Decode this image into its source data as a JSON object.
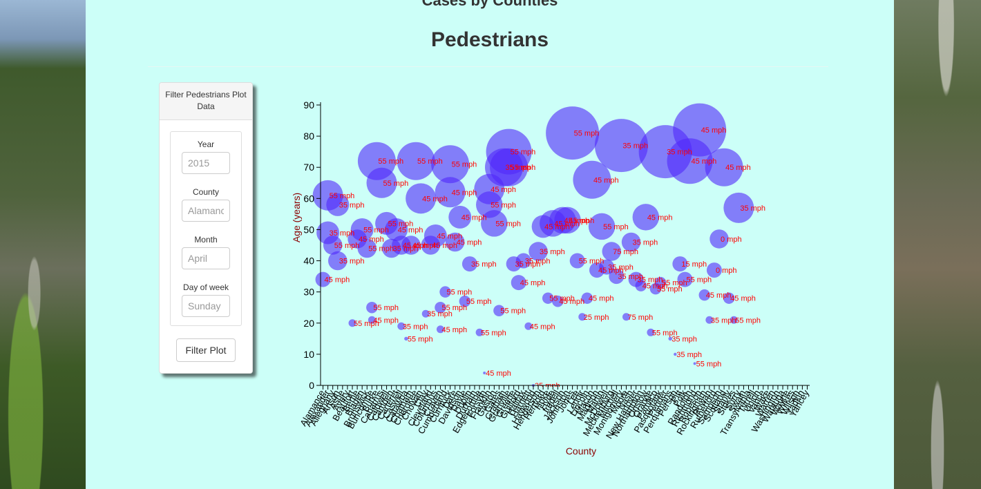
{
  "page": {
    "top_title": "Cases by Counties",
    "main_title": "Pedestrians"
  },
  "filter": {
    "header": "Filter Pedestrians Plot Data",
    "fields": [
      {
        "label": "Year",
        "placeholder": "2015"
      },
      {
        "label": "County",
        "placeholder": "Alamance"
      },
      {
        "label": "Month",
        "placeholder": "April"
      },
      {
        "label": "Day of week",
        "placeholder": "Sunday"
      }
    ],
    "button_label": "Filter Plot"
  },
  "colors": {
    "panel_bg": "#ccfff8",
    "bubble": "#5028fa",
    "bubble_label": "#ff0000",
    "axis_label": "#8b0000"
  },
  "chart_data": {
    "type": "scatter",
    "encoding": "bubble",
    "xlabel": "County",
    "ylabel": "Age (years)",
    "ylim": [
      0,
      90
    ],
    "yticks": [
      0,
      10,
      20,
      30,
      40,
      50,
      60,
      70,
      80,
      90
    ],
    "grid": false,
    "categories": [
      "Alamance",
      "Alexander",
      "Alleghany",
      "Anson",
      "Ashe",
      "Avery",
      "Beaufort",
      "Bertie",
      "Bladen",
      "Brunswick",
      "Buncombe",
      "Burke",
      "Cabarrus",
      "Caldwell",
      "Camden",
      "Carteret",
      "Caswell",
      "Catawba",
      "Chatham",
      "Cherokee",
      "Chowan",
      "Clay",
      "Cleveland",
      "Columbus",
      "Craven",
      "Cumberland",
      "Currituck",
      "Dare",
      "Davidson",
      "Davie",
      "Duplin",
      "Durham",
      "Edgecombe",
      "Forsyth",
      "Franklin",
      "Gaston",
      "Gates",
      "Graham",
      "Granville",
      "Greene",
      "Guilford",
      "Halifax",
      "Harnett",
      "Haywood",
      "Henderson",
      "Hertford",
      "Hoke",
      "Hyde",
      "Iredell",
      "Jackson",
      "Johnston",
      "Jones",
      "Lee",
      "Lenoir",
      "Lincoln",
      "Macon",
      "Madison",
      "Martin",
      "McDowell",
      "Mecklenburg",
      "Mitchell",
      "Montgomery",
      "Moore",
      "Nash",
      "New Hanover",
      "Northampton",
      "Onslow",
      "Orange",
      "Pamlico",
      "Pasquotank",
      "Pender",
      "Perquimans",
      "Person",
      "Pitt",
      "Polk",
      "Randolph",
      "Richmond",
      "Robeson",
      "Rockingham",
      "Rowan",
      "Rutherford",
      "Sampson",
      "Scotland",
      "Stanly",
      "Stokes",
      "Surry",
      "Swain",
      "Transylvania",
      "Tyrrell",
      "Union",
      "Vance",
      "Wake",
      "Warren",
      "Washington",
      "Watauga",
      "Wayne",
      "Wilkes",
      "Wilson",
      "Yadkin",
      "Yancey"
    ],
    "points": [
      {
        "x": "Alamance",
        "y": 34,
        "size": 4,
        "label": "45 mph"
      },
      {
        "x": "Alexander",
        "y": 61,
        "size": 8,
        "label": "55 mph"
      },
      {
        "x": "Alexander",
        "y": 49,
        "size": 6,
        "label": "35 mph"
      },
      {
        "x": "Alleghany",
        "y": 45,
        "size": 5,
        "label": "55 mph"
      },
      {
        "x": "Anson",
        "y": 58,
        "size": 6,
        "label": "35 mph"
      },
      {
        "x": "Anson",
        "y": 40,
        "size": 5,
        "label": "35 mph"
      },
      {
        "x": "Beaufort",
        "y": 20,
        "size": 2,
        "label": "55 mph"
      },
      {
        "x": "Bertie",
        "y": 47,
        "size": 5,
        "label": "45 mph"
      },
      {
        "x": "Bladen",
        "y": 50,
        "size": 6,
        "label": "55 mph"
      },
      {
        "x": "Brunswick",
        "y": 44,
        "size": 5,
        "label": "55 mph"
      },
      {
        "x": "Buncombe",
        "y": 25,
        "size": 3,
        "label": "55 mph"
      },
      {
        "x": "Buncombe",
        "y": 21,
        "size": 2,
        "label": "45 mph"
      },
      {
        "x": "Burke",
        "y": 72,
        "size": 10,
        "label": "55 mph"
      },
      {
        "x": "Cabarrus",
        "y": 65,
        "size": 8,
        "label": "55 mph"
      },
      {
        "x": "Caldwell",
        "y": 52,
        "size": 6,
        "label": "55 mph"
      },
      {
        "x": "Camden",
        "y": 44,
        "size": 5,
        "label": "35 mph"
      },
      {
        "x": "Carteret",
        "y": 50,
        "size": 6,
        "label": "45 mph"
      },
      {
        "x": "Caswell",
        "y": 19,
        "size": 2,
        "label": "35 mph"
      },
      {
        "x": "Caswell",
        "y": 45,
        "size": 5,
        "label": "45 mph"
      },
      {
        "x": "Catawba",
        "y": 15,
        "size": 1,
        "label": "55 mph"
      },
      {
        "x": "Chatham",
        "y": 45,
        "size": 5,
        "label": "45 mph"
      },
      {
        "x": "Cherokee",
        "y": 72,
        "size": 10,
        "label": "55 mph"
      },
      {
        "x": "Chowan",
        "y": 60,
        "size": 8,
        "label": "45 mph"
      },
      {
        "x": "Clay",
        "y": 23,
        "size": 2,
        "label": "35 mph"
      },
      {
        "x": "Cleveland",
        "y": 45,
        "size": 5,
        "label": "45 mph"
      },
      {
        "x": "Columbus",
        "y": 48,
        "size": 6,
        "label": "45 mph"
      },
      {
        "x": "Craven",
        "y": 18,
        "size": 2,
        "label": "45 mph"
      },
      {
        "x": "Craven",
        "y": 25,
        "size": 3,
        "label": "55 mph"
      },
      {
        "x": "Cumberland",
        "y": 30,
        "size": 3,
        "label": "55 mph"
      },
      {
        "x": "Currituck",
        "y": 71,
        "size": 10,
        "label": "55 mph"
      },
      {
        "x": "Currituck",
        "y": 62,
        "size": 8,
        "label": "45 mph"
      },
      {
        "x": "Dare",
        "y": 46,
        "size": 5,
        "label": "45 mph"
      },
      {
        "x": "Davidson",
        "y": 54,
        "size": 6,
        "label": "45 mph"
      },
      {
        "x": "Davie",
        "y": 27,
        "size": 3,
        "label": "55 mph"
      },
      {
        "x": "Duplin",
        "y": 39,
        "size": 4,
        "label": "35 mph"
      },
      {
        "x": "Edgecombe",
        "y": 17,
        "size": 2,
        "label": "55 mph"
      },
      {
        "x": "Forsyth",
        "y": 4,
        "size": 0.5,
        "label": "45 mph"
      },
      {
        "x": "Franklin",
        "y": 63,
        "size": 8,
        "label": "45 mph"
      },
      {
        "x": "Franklin",
        "y": 58,
        "size": 7,
        "label": "55 mph"
      },
      {
        "x": "Gaston",
        "y": 52,
        "size": 7,
        "label": "55 mph"
      },
      {
        "x": "Gates",
        "y": 24,
        "size": 3,
        "label": "55 mph"
      },
      {
        "x": "Graham",
        "y": 70,
        "size": 10,
        "label": "35 mph"
      },
      {
        "x": "Granville",
        "y": 75,
        "size": 12,
        "label": "55 mph"
      },
      {
        "x": "Granville",
        "y": 70,
        "size": 10,
        "label": "55 mph"
      },
      {
        "x": "Greene",
        "y": 39,
        "size": 4,
        "label": "35 mph"
      },
      {
        "x": "Guilford",
        "y": 33,
        "size": 4,
        "label": "45 mph"
      },
      {
        "x": "Halifax",
        "y": 40,
        "size": 4,
        "label": "35 mph"
      },
      {
        "x": "Harnett",
        "y": 19,
        "size": 2,
        "label": "45 mph"
      },
      {
        "x": "Haywood",
        "y": 0,
        "size": 0.3,
        "label": "35 mph"
      },
      {
        "x": "Henderson",
        "y": 43,
        "size": 5,
        "label": "35 mph"
      },
      {
        "x": "Hertford",
        "y": 51,
        "size": 6,
        "label": "45 mph"
      },
      {
        "x": "Hoke",
        "y": 28,
        "size": 3,
        "label": "55 mph"
      },
      {
        "x": "Hyde",
        "y": 52,
        "size": 7,
        "label": "45 mph"
      },
      {
        "x": "Iredell",
        "y": 27,
        "size": 3,
        "label": "45 mph"
      },
      {
        "x": "Jackson",
        "y": 53,
        "size": 7,
        "label": "45 mph"
      },
      {
        "x": "Johnston",
        "y": 53,
        "size": 7,
        "label": "45 mph"
      },
      {
        "x": "Jones",
        "y": 81,
        "size": 14,
        "label": "55 mph"
      },
      {
        "x": "Lee",
        "y": 40,
        "size": 4,
        "label": "55 mph"
      },
      {
        "x": "Lenoir",
        "y": 22,
        "size": 2,
        "label": "25 mph"
      },
      {
        "x": "Lincoln",
        "y": 28,
        "size": 3,
        "label": "45 mph"
      },
      {
        "x": "Macon",
        "y": 66,
        "size": 10,
        "label": "45 mph"
      },
      {
        "x": "Madison",
        "y": 37,
        "size": 4,
        "label": "45 mph"
      },
      {
        "x": "Martin",
        "y": 51,
        "size": 7,
        "label": "55 mph"
      },
      {
        "x": "McDowell",
        "y": 38,
        "size": 4,
        "label": "35 mph"
      },
      {
        "x": "Mecklenburg",
        "y": 43,
        "size": 5,
        "label": "75 mph"
      },
      {
        "x": "Mitchell",
        "y": 35,
        "size": 4,
        "label": "35 mph"
      },
      {
        "x": "Montgomery",
        "y": 77,
        "size": 14,
        "label": "35 mph"
      },
      {
        "x": "Moore",
        "y": 22,
        "size": 2,
        "label": "75 mph"
      },
      {
        "x": "Nash",
        "y": 46,
        "size": 5,
        "label": "35 mph"
      },
      {
        "x": "New Hanover",
        "y": 34,
        "size": 4,
        "label": "35 mph"
      },
      {
        "x": "Northampton",
        "y": 32,
        "size": 3,
        "label": "45 mph"
      },
      {
        "x": "Onslow",
        "y": 54,
        "size": 7,
        "label": "45 mph"
      },
      {
        "x": "Orange",
        "y": 17,
        "size": 2,
        "label": "55 mph"
      },
      {
        "x": "Pamlico",
        "y": 31,
        "size": 3,
        "label": "55 mph"
      },
      {
        "x": "Pasquotank",
        "y": 33,
        "size": 3,
        "label": "55 mph"
      },
      {
        "x": "Pender",
        "y": 75,
        "size": 14,
        "label": "35 mph"
      },
      {
        "x": "Perquimans",
        "y": 15,
        "size": 1,
        "label": "35 mph"
      },
      {
        "x": "Person",
        "y": 10,
        "size": 0.8,
        "label": "35 mph"
      },
      {
        "x": "Pitt",
        "y": 39,
        "size": 4,
        "label": "15 mph"
      },
      {
        "x": "Polk",
        "y": 34,
        "size": 4,
        "label": "55 mph"
      },
      {
        "x": "Randolph",
        "y": 72,
        "size": 12,
        "label": "45 mph"
      },
      {
        "x": "Richmond",
        "y": 7,
        "size": 0.5,
        "label": "55 mph"
      },
      {
        "x": "Robeson",
        "y": 82,
        "size": 14,
        "label": "45 mph"
      },
      {
        "x": "Rockingham",
        "y": 29,
        "size": 3,
        "label": "45 mph"
      },
      {
        "x": "Rowan",
        "y": 21,
        "size": 2,
        "label": "35 mph"
      },
      {
        "x": "Rutherford",
        "y": 37,
        "size": 4,
        "label": "0 mph"
      },
      {
        "x": "Sampson",
        "y": 47,
        "size": 5,
        "label": "0 mph"
      },
      {
        "x": "Scotland",
        "y": 70,
        "size": 10,
        "label": "45 mph"
      },
      {
        "x": "Stanly",
        "y": 28,
        "size": 3,
        "label": "45 mph"
      },
      {
        "x": "Stokes",
        "y": 21,
        "size": 2,
        "label": "55 mph"
      },
      {
        "x": "Surry",
        "y": 57,
        "size": 8,
        "label": "35 mph"
      }
    ]
  }
}
